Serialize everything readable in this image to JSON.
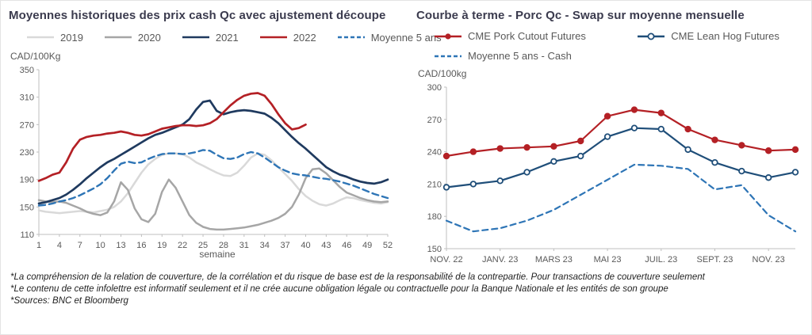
{
  "chart_data": [
    {
      "type": "line",
      "title": "Moyennes historiques des prix cash Qc avec ajustement découpe",
      "y_axis_label": "CAD/100Kg",
      "x_label": "semaine",
      "ylim": [
        110,
        350
      ],
      "yticks": [
        110,
        150,
        190,
        230,
        270,
        310,
        350
      ],
      "grid": false,
      "legend_position": "top",
      "x_tick_indices": [
        0,
        3,
        6,
        9,
        12,
        15,
        18,
        21,
        24,
        27,
        30,
        33,
        36,
        39,
        42,
        45,
        48,
        51
      ],
      "x_tick_labels": [
        "1",
        "4",
        "7",
        "10",
        "13",
        "16",
        "19",
        "22",
        "25",
        "28",
        "31",
        "34",
        "37",
        "40",
        "43",
        "46",
        "49",
        "52"
      ],
      "series": [
        {
          "name": "2019",
          "color": "#d9d9d9",
          "width": 2.5,
          "dash": null,
          "marker": "none",
          "values": [
            145,
            143,
            142,
            141,
            142,
            143,
            144,
            143,
            142,
            144,
            146,
            150,
            158,
            170,
            185,
            200,
            212,
            220,
            226,
            228,
            228,
            227,
            222,
            215,
            210,
            205,
            200,
            196,
            195,
            200,
            210,
            222,
            228,
            226,
            218,
            208,
            198,
            188,
            176,
            166,
            159,
            154,
            152,
            155,
            160,
            164,
            163,
            160,
            158,
            156,
            155,
            157
          ]
        },
        {
          "name": "2020",
          "color": "#a6a6a6",
          "width": 2.5,
          "dash": null,
          "marker": "none",
          "values": [
            160,
            158,
            157,
            158,
            156,
            152,
            148,
            143,
            140,
            138,
            142,
            158,
            186,
            175,
            148,
            132,
            128,
            140,
            172,
            190,
            178,
            158,
            138,
            127,
            121,
            118,
            117,
            117,
            118,
            119,
            120,
            122,
            124,
            127,
            130,
            134,
            140,
            150,
            168,
            192,
            205,
            206,
            199,
            189,
            179,
            171,
            167,
            163,
            160,
            158,
            157,
            158
          ]
        },
        {
          "name": "2021",
          "color": "#1f3a5f",
          "width": 2.7,
          "dash": null,
          "marker": "none",
          "values": [
            155,
            157,
            160,
            163,
            168,
            175,
            183,
            192,
            200,
            208,
            215,
            220,
            226,
            232,
            238,
            244,
            250,
            255,
            258,
            262,
            266,
            270,
            278,
            292,
            303,
            305,
            290,
            285,
            288,
            290,
            291,
            290,
            288,
            286,
            280,
            272,
            262,
            252,
            243,
            235,
            226,
            217,
            208,
            202,
            197,
            194,
            190,
            187,
            185,
            184,
            186,
            190
          ]
        },
        {
          "name": "2022",
          "color": "#b42025",
          "width": 2.7,
          "dash": null,
          "marker": "none",
          "values": [
            188,
            192,
            197,
            200,
            215,
            235,
            248,
            252,
            254,
            255,
            257,
            258,
            260,
            258,
            255,
            254,
            256,
            260,
            264,
            266,
            268,
            269,
            269,
            268,
            269,
            272,
            278,
            288,
            298,
            306,
            312,
            315,
            316,
            312,
            300,
            285,
            272,
            263,
            265,
            270,
            null,
            null,
            null,
            null,
            null,
            null,
            null,
            null,
            null,
            null,
            null,
            null
          ]
        },
        {
          "name": "Moyenne 5 ans",
          "color": "#2e75b6",
          "width": 2.4,
          "dash": "8 5",
          "marker": "none",
          "values": [
            152,
            153,
            155,
            158,
            160,
            163,
            167,
            172,
            177,
            183,
            192,
            203,
            213,
            216,
            214,
            215,
            220,
            224,
            227,
            228,
            228,
            227,
            228,
            230,
            233,
            232,
            226,
            221,
            220,
            222,
            227,
            230,
            228,
            222,
            215,
            208,
            203,
            199,
            197,
            196,
            194,
            192,
            191,
            189,
            187,
            184,
            181,
            177,
            173,
            169,
            166,
            163
          ]
        }
      ]
    },
    {
      "type": "line",
      "title": "Courbe à terme - Porc Qc - Swap sur moyenne mensuelle",
      "y_axis_label": "CAD/100kg",
      "x_label": "",
      "ylim": [
        150,
        300
      ],
      "yticks": [
        150,
        180,
        210,
        240,
        270,
        300
      ],
      "grid": false,
      "legend_position": "top",
      "x_tick_indices": [
        0,
        2,
        4,
        6,
        8,
        10,
        12
      ],
      "x_tick_labels": [
        "NOV. 22",
        "JANV. 23",
        "MARS 23",
        "MAI 23",
        "JUIL. 23",
        "SEPT. 23",
        "NOV. 23"
      ],
      "series": [
        {
          "name": "CME Pork Cutout Futures",
          "color": "#b42025",
          "width": 2.2,
          "dash": null,
          "marker": "filled",
          "values": [
            236,
            240,
            243,
            244,
            245,
            250,
            273,
            279,
            276,
            261,
            251,
            246,
            241,
            242
          ]
        },
        {
          "name": "CME Lean Hog Futures",
          "color": "#1f4e79",
          "width": 2.2,
          "dash": null,
          "marker": "open",
          "values": [
            207,
            210,
            213,
            221,
            231,
            236,
            254,
            262,
            261,
            242,
            230,
            222,
            216,
            221
          ]
        },
        {
          "name": "Moyenne 5 ans - Cash",
          "color": "#2e75b6",
          "width": 2.2,
          "dash": "7 5",
          "marker": "none",
          "values": [
            176,
            166,
            169,
            176,
            186,
            200,
            214,
            228,
            227,
            224,
            205,
            209,
            181,
            166
          ]
        }
      ]
    }
  ],
  "footnotes": [
    "*La compréhension de la relation de couverture, de la corrélation et du risque de base est de la responsabilité de la contrepartie. Pour transactions de couverture seulement",
    "*Le contenu de cette infolettre est informatif seulement et il ne crée aucune obligation légale ou contractuelle pour la Banque Nationale et les entités de son groupe",
    "*Sources: BNC et Bloomberg"
  ],
  "colors": {
    "axis": "#bfbfbf",
    "tick_text": "#595959",
    "title_text": "#3b3b4e"
  }
}
